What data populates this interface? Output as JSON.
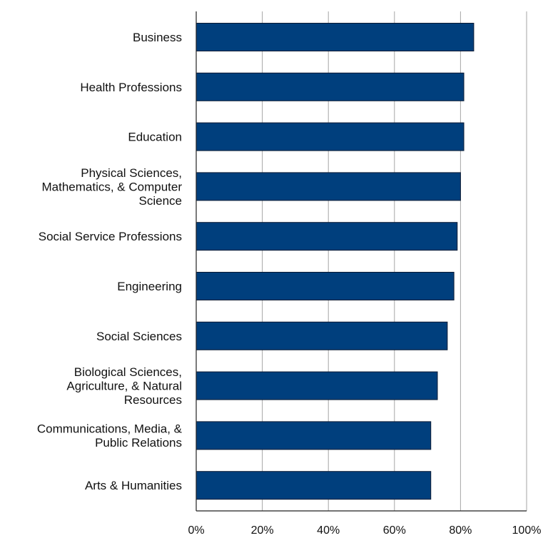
{
  "chart_data": {
    "type": "bar",
    "orientation": "horizontal",
    "categories": [
      "Business",
      "Health Professions",
      "Education",
      "Physical Sciences, Mathematics, & Computer Science",
      "Social Service Professions",
      "Engineering",
      "Social Sciences",
      "Biological Sciences, Agriculture, & Natural Resources",
      "Communications, Media, & Public Relations",
      "Arts & Humanities"
    ],
    "category_label_lines": [
      [
        "Business"
      ],
      [
        "Health Professions"
      ],
      [
        "Education"
      ],
      [
        "Physical Sciences,",
        "Mathematics, & Computer",
        "Science"
      ],
      [
        "Social Service Professions"
      ],
      [
        "Engineering"
      ],
      [
        "Social Sciences"
      ],
      [
        "Biological Sciences,",
        "Agriculture, & Natural",
        "Resources"
      ],
      [
        "Communications, Media, &",
        "Public Relations"
      ],
      [
        "Arts & Humanities"
      ]
    ],
    "values": [
      84,
      81,
      81,
      80,
      79,
      78,
      76,
      73,
      71,
      71
    ],
    "xlim": [
      0,
      100
    ],
    "x_ticks": [
      "0%",
      "20%",
      "40%",
      "60%",
      "80%",
      "100%"
    ],
    "grid": true,
    "bar_color": "#003f7d",
    "title": "",
    "xlabel": "",
    "ylabel": ""
  }
}
